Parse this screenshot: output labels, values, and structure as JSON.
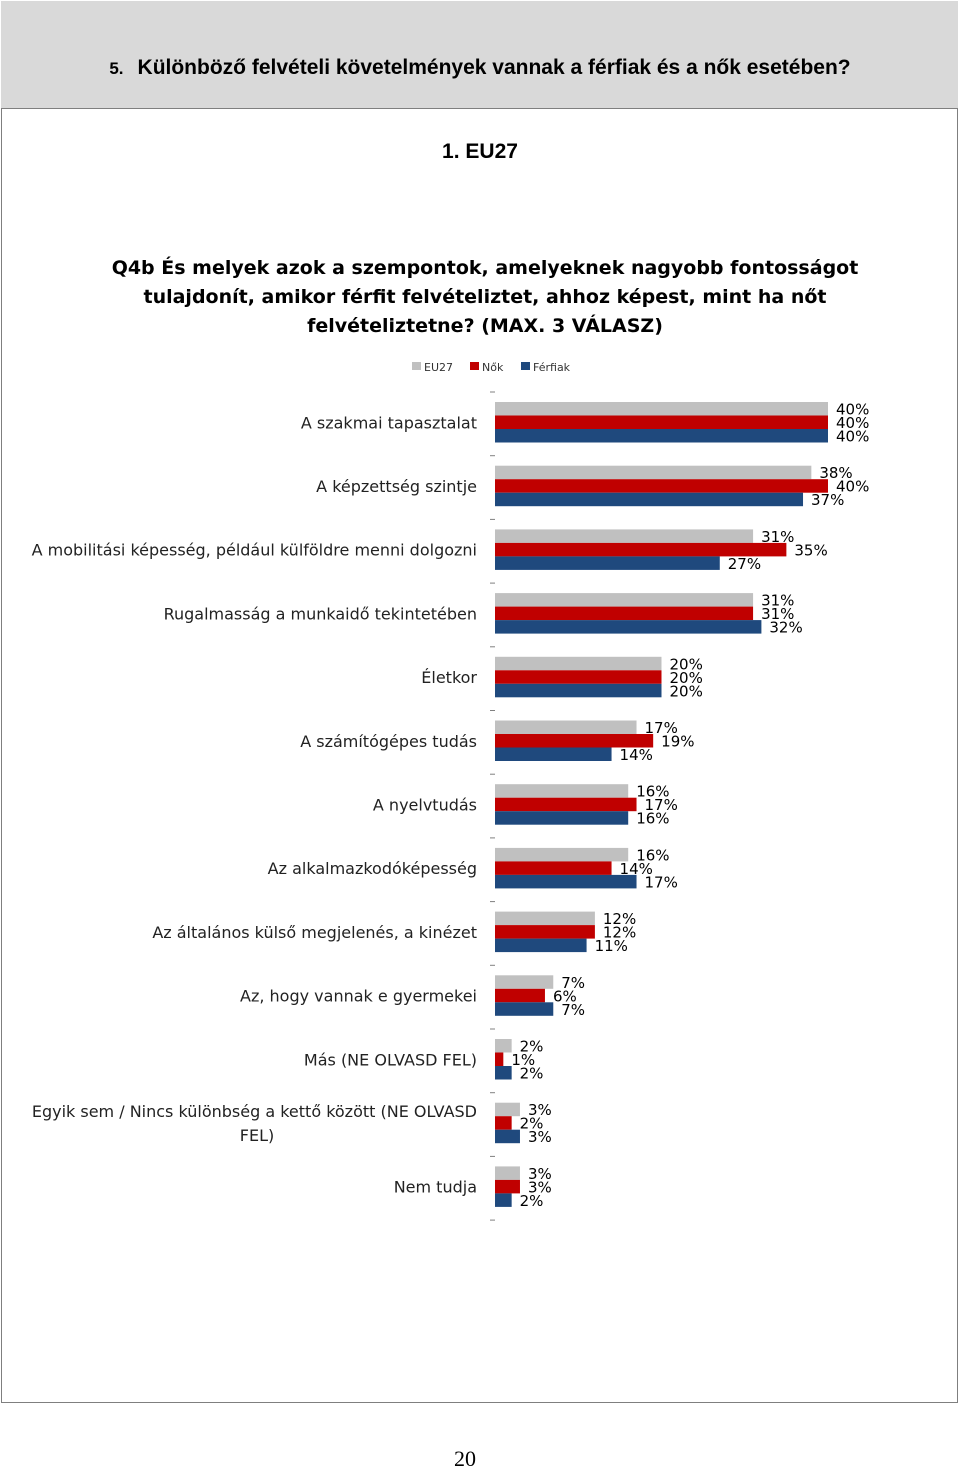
{
  "header": {
    "section_number": "5.",
    "title": "Különböző felvételi követelmények vannak a férfiak és a nők esetében?"
  },
  "subheader": "1.  EU27",
  "page_number": "20",
  "chart_data": {
    "type": "bar",
    "orientation": "horizontal",
    "title_lines": [
      "Q4b És melyek azok a szempontok, amelyeknek nagyobb fontosságot",
      "tulajdonít, amikor férfit felvételiztet, ahhoz képest, mint ha nőt",
      "felvételiztetne? (MAX. 3 VÁLASZ)"
    ],
    "legend_position": "top",
    "value_suffix": "%",
    "xlim": [
      0,
      40
    ],
    "categories": [
      [
        "A szakmai tapasztalat"
      ],
      [
        "A képzettség szintje"
      ],
      [
        "A mobilitási képesség, például külföldre menni dolgozni"
      ],
      [
        "Rugalmasság a munkaidő tekintetében"
      ],
      [
        "Életkor"
      ],
      [
        "A számítógépes tudás"
      ],
      [
        "A nyelvtudás"
      ],
      [
        "Az alkalmazkodóképesség"
      ],
      [
        "Az általános külső megjelenés, a kinézet"
      ],
      [
        "Az, hogy vannak e gyermekei"
      ],
      [
        "Más (NE OLVASD FEL)"
      ],
      [
        "Egyik sem / Nincs különbség a kettő között (NE OLVASD",
        "FEL)"
      ],
      [
        "Nem tudja"
      ]
    ],
    "series": [
      {
        "name": "EU27",
        "color": "#c0c0c0",
        "values": [
          40,
          38,
          31,
          31,
          20,
          17,
          16,
          16,
          12,
          7,
          2,
          3,
          3
        ]
      },
      {
        "name": "Nők",
        "color": "#c00000",
        "values": [
          40,
          40,
          35,
          31,
          20,
          19,
          17,
          14,
          12,
          6,
          1,
          2,
          3
        ]
      },
      {
        "name": "Férfiak",
        "color": "#1f497d",
        "values": [
          40,
          37,
          27,
          32,
          20,
          14,
          16,
          17,
          11,
          7,
          2,
          3,
          2
        ]
      }
    ]
  }
}
